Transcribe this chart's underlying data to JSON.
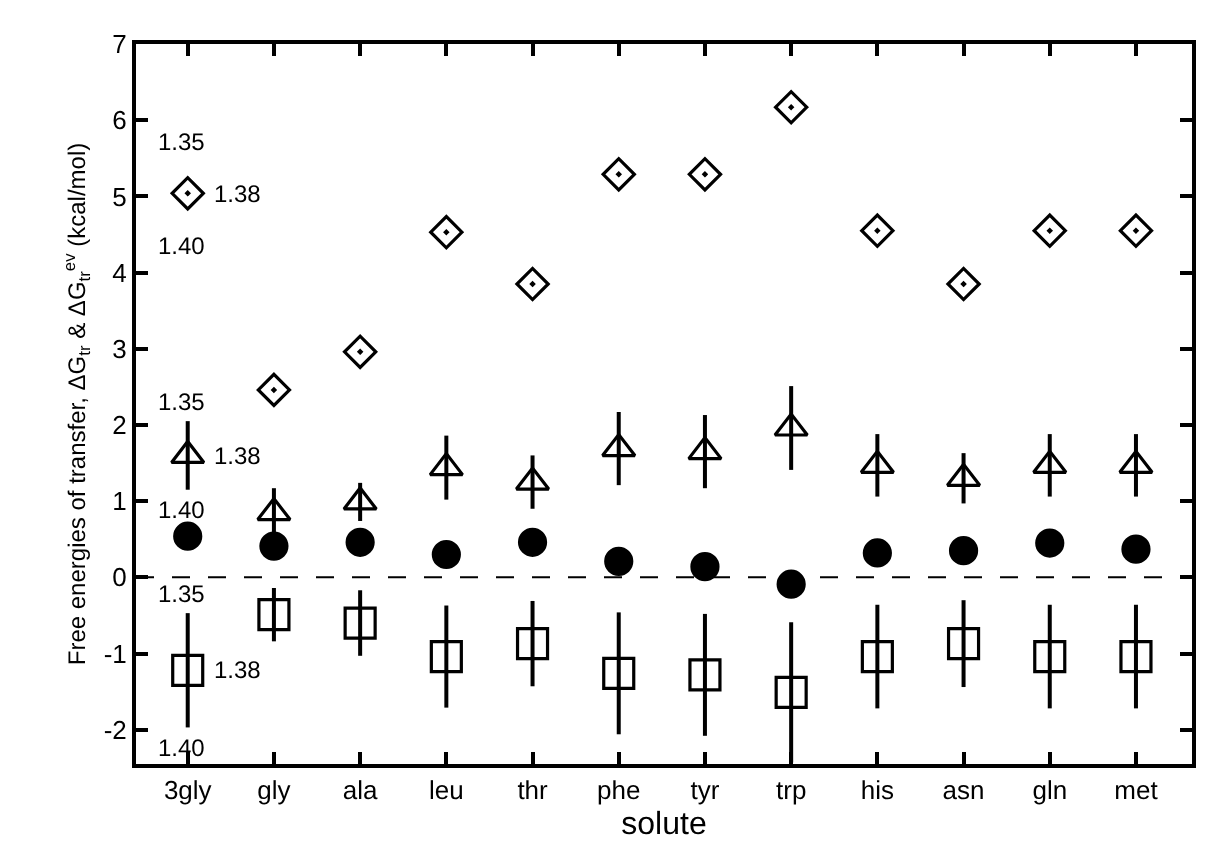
{
  "chart_data": {
    "type": "scatter",
    "xlabel": "solute",
    "ylabel": "Free energies of transfer, ΔG$_{tr}$ & ΔG$_{tr}$$^{ev}$ (kcal/mol)",
    "categories": [
      "3gly",
      "gly",
      "ala",
      "leu",
      "thr",
      "phe",
      "tyr",
      "trp",
      "his",
      "asn",
      "gln",
      "met"
    ],
    "series": [
      {
        "color": "#000000",
        "marker": "diamond",
        "values": [
          5.04,
          2.46,
          2.96,
          4.53,
          3.85,
          5.29,
          5.29,
          6.17,
          4.55,
          3.85,
          4.55,
          4.55
        ]
      },
      {
        "color": "#000000",
        "marker": "triangle",
        "values": [
          1.6,
          0.85,
          0.99,
          1.44,
          1.25,
          1.69,
          1.65,
          1.96,
          1.47,
          1.3,
          1.47,
          1.47
        ],
        "errors": [
          0.45,
          0.32,
          0.25,
          0.42,
          0.35,
          0.48,
          0.48,
          0.55,
          0.41,
          0.33,
          0.41,
          0.41
        ]
      },
      {
        "color": "#000000",
        "marker": "circle",
        "values": [
          0.54,
          0.41,
          0.46,
          0.3,
          0.46,
          0.21,
          0.14,
          -0.09,
          0.32,
          0.35,
          0.45,
          0.37
        ]
      },
      {
        "color": "#000000",
        "marker": "square",
        "values": [
          -1.22,
          -0.49,
          -0.6,
          -1.04,
          -0.87,
          -1.26,
          -1.28,
          -1.51,
          -1.04,
          -0.87,
          -1.04,
          -1.04
        ],
        "errors": [
          0.75,
          0.35,
          0.43,
          0.67,
          0.56,
          0.8,
          0.8,
          0.92,
          0.68,
          0.57,
          0.68,
          0.68
        ]
      }
    ],
    "annotations": [
      {
        "text": "1.35",
        "x": "3gly",
        "y": 5.04
      },
      {
        "text": "1.38",
        "x": "3gly",
        "y": 5.04
      },
      {
        "text": "1.40",
        "x": "3gly",
        "y": 5.04
      },
      {
        "text": "1.35",
        "x": "3gly",
        "y": 1.6
      },
      {
        "text": "1.38",
        "x": "3gly",
        "y": 1.6
      },
      {
        "text": "1.40",
        "x": "3gly",
        "y": 1.6
      },
      {
        "text": "1.35",
        "x": "3gly",
        "y": -1.22
      },
      {
        "text": "1.38",
        "x": "3gly",
        "y": -1.22
      },
      {
        "text": "1.40",
        "x": "3gly",
        "y": -1.22
      }
    ],
    "ref_lines": [
      {
        "axis": "y",
        "value": 0,
        "line_style": "dashed",
        "color": "#000000"
      }
    ],
    "ylim": [
      -2.45,
      7
    ],
    "yticks": [
      -2,
      -1,
      0,
      1,
      2,
      3,
      4,
      5,
      6,
      7
    ]
  }
}
